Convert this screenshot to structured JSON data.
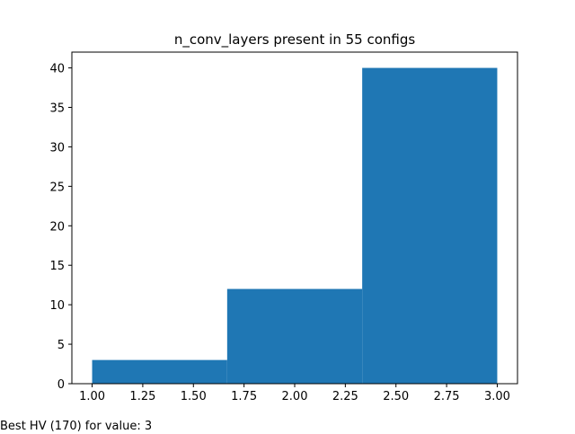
{
  "chart_data": {
    "type": "bar",
    "title": "n_conv_layers present in 55 configs",
    "xlabel": "",
    "ylabel": "",
    "bins": [
      {
        "x0": 1.0,
        "x1": 1.6667,
        "value": 3
      },
      {
        "x0": 1.6667,
        "x1": 2.3333,
        "value": 12
      },
      {
        "x0": 2.3333,
        "x1": 3.0,
        "value": 40
      }
    ],
    "xlim": [
      0.9,
      3.1
    ],
    "ylim": [
      0,
      42
    ],
    "xticks": [
      1.0,
      1.25,
      1.5,
      1.75,
      2.0,
      2.25,
      2.5,
      2.75,
      3.0
    ],
    "xtick_labels": [
      "1.00",
      "1.25",
      "1.50",
      "1.75",
      "2.00",
      "2.25",
      "2.50",
      "2.75",
      "3.00"
    ],
    "yticks": [
      0,
      5,
      10,
      15,
      20,
      25,
      30,
      35,
      40
    ],
    "ytick_labels": [
      "0",
      "5",
      "10",
      "15",
      "20",
      "25",
      "30",
      "35",
      "40"
    ],
    "grid": false,
    "color": "#1f77b4"
  },
  "footnote": "Best HV (170) for value: 3"
}
